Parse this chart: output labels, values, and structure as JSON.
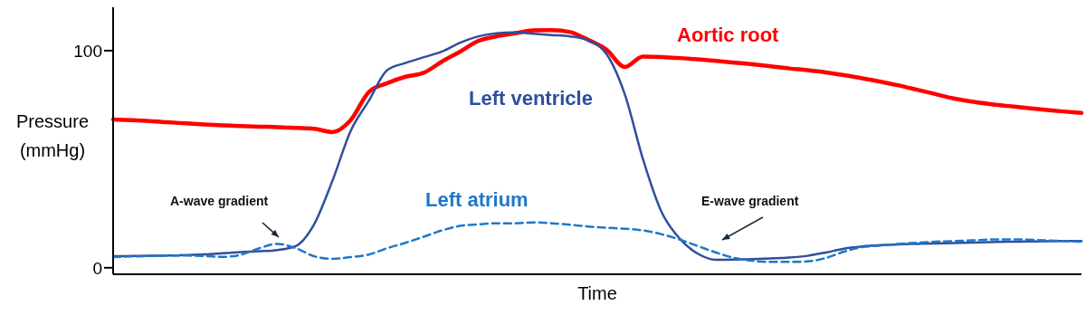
{
  "chart_data": {
    "type": "line",
    "xlabel": "Time",
    "ylabel": "Pressure (mmHg)",
    "categories": [
      null,
      null,
      null,
      null,
      null,
      null,
      null,
      null,
      null,
      null,
      null,
      null,
      null,
      null,
      null,
      null,
      null,
      null,
      null,
      null,
      null,
      null,
      null,
      null,
      null,
      null,
      null,
      null,
      null,
      null,
      null,
      null,
      null,
      null,
      null,
      null,
      null,
      null,
      null,
      null,
      null,
      null,
      null,
      null,
      null,
      null,
      null,
      null,
      null,
      null,
      null,
      null,
      null,
      null
    ],
    "series": [
      {
        "name": "Aortic root",
        "color": "#ff0000",
        "line_style": "solid",
        "values": [
          68.3,
          68,
          67.6,
          67,
          66.5,
          66,
          65.6,
          65.3,
          65,
          64.8,
          64.4,
          64,
          62.5,
          68,
          81,
          85,
          88,
          89.8,
          95,
          99.6,
          104.5,
          106.6,
          108,
          109.4,
          109.5,
          108.6,
          105,
          100.5,
          92.5,
          97.3,
          97.1,
          96.6,
          96,
          95.3,
          94.5,
          93.7,
          92.8,
          91.8,
          91,
          90,
          88.7,
          87.3,
          85.7,
          84,
          82,
          80,
          78,
          76.5,
          75.4,
          74.5,
          73.6,
          72.8,
          72,
          71.3
        ]
      },
      {
        "name": "Left ventricle",
        "color": "#2e4f9e",
        "line_style": "solid",
        "values": [
          5.3,
          5.4,
          5.5,
          5.6,
          5.9,
          6.2,
          6.7,
          7.2,
          7.6,
          8.2,
          10,
          20,
          40,
          63,
          77,
          91,
          94.3,
          97,
          99.6,
          103.7,
          106.6,
          108,
          108.4,
          107.8,
          107.2,
          106.6,
          104.7,
          98.5,
          80,
          50,
          26,
          13.5,
          6.5,
          3.7,
          3.8,
          4,
          4.3,
          4.7,
          5.5,
          7,
          8.8,
          9.8,
          10.4,
          10.8,
          11,
          11.2,
          11.4,
          11.6,
          11.8,
          12,
          12.1,
          12.2,
          12.3,
          12.3
        ]
      },
      {
        "name": "Left atrium",
        "color": "#1f78c8",
        "line_style": "dashed",
        "values": [
          4.9,
          5.2,
          5.4,
          5.6,
          5.6,
          5.4,
          5,
          6,
          9,
          11,
          9,
          5.3,
          4.1,
          4.9,
          6.1,
          9,
          11.5,
          14.3,
          17.2,
          19.3,
          20,
          20.5,
          20.5,
          20.9,
          20.5,
          19.8,
          19,
          18.4,
          18,
          17.2,
          15.5,
          13,
          10,
          7,
          4.5,
          3.2,
          2.7,
          2.7,
          2.9,
          4.5,
          7.4,
          9.5,
          10.2,
          11,
          11.5,
          12,
          12.3,
          12.6,
          13,
          13.1,
          13,
          12.6,
          12.3,
          12
        ]
      }
    ],
    "ylim": [
      -3,
      120
    ],
    "yticks": [
      0,
      100
    ],
    "annotations": [
      "A-wave gradient",
      "E-wave gradient"
    ],
    "grid": false,
    "legend": false,
    "marker": "none"
  }
}
